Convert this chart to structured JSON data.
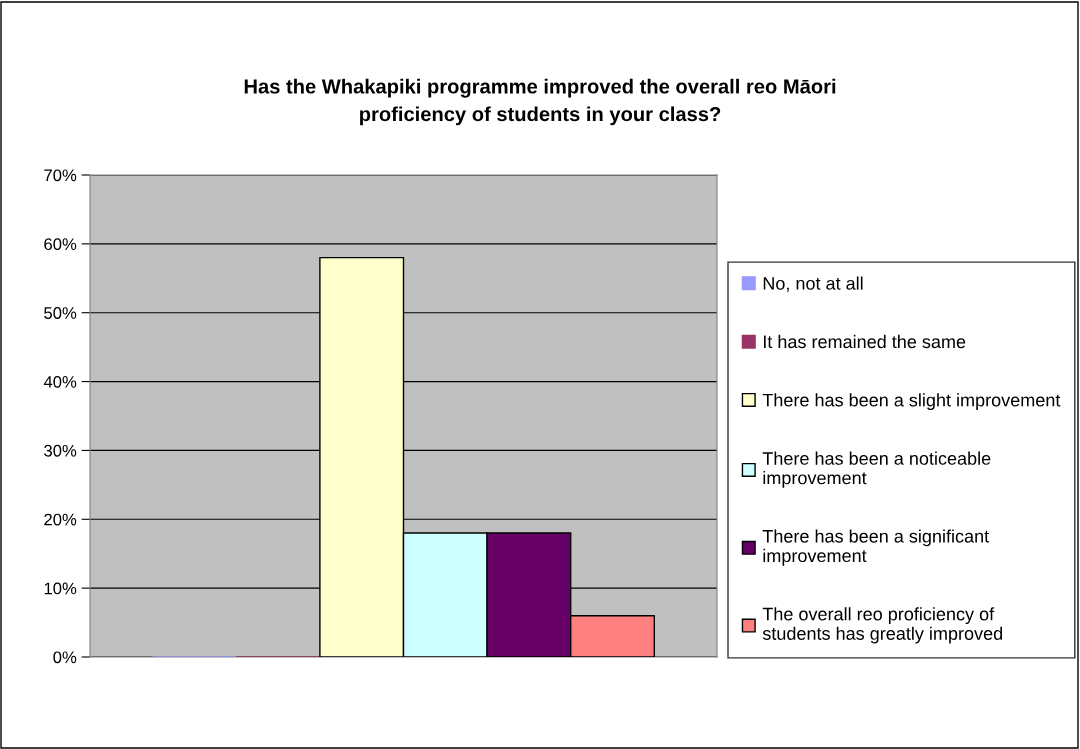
{
  "chart_data": {
    "type": "bar",
    "title": "Has the Whakapiki programme improved the overall reo Māori proficiency of students in your class?",
    "categories": [
      null
    ],
    "series": [
      {
        "name": "No, not at all",
        "color": "#9999ff",
        "values": [
          0
        ]
      },
      {
        "name": "It has remained the same",
        "color": "#993366",
        "values": [
          0
        ]
      },
      {
        "name": "There has been a slight improvement",
        "color": "#ffffcc",
        "values": [
          58
        ]
      },
      {
        "name": "There has been a noticeable improvement",
        "color": "#ccffff",
        "values": [
          18
        ]
      },
      {
        "name": "There has been a significant improvement",
        "color": "#660066",
        "values": [
          18
        ]
      },
      {
        "name": "The overall reo proficiency of students has greatly improved",
        "color": "#ff8080",
        "values": [
          6
        ]
      }
    ],
    "ylim": [
      0,
      70
    ],
    "yticks": [
      {
        "value": 0,
        "label": "0%"
      },
      {
        "value": 10,
        "label": "10%"
      },
      {
        "value": 20,
        "label": "20%"
      },
      {
        "value": 30,
        "label": "30%"
      },
      {
        "value": 40,
        "label": "40%"
      },
      {
        "value": 50,
        "label": "50%"
      },
      {
        "value": 60,
        "label": "60%"
      },
      {
        "value": 70,
        "label": "70%"
      }
    ],
    "grid": "y",
    "legend": "right"
  }
}
